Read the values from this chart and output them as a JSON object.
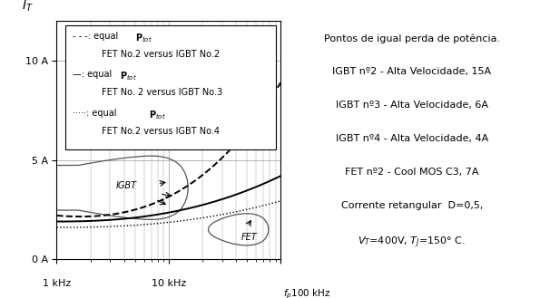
{
  "xmin": 1000,
  "xmax": 100000,
  "ymin": 0,
  "ymax": 12,
  "yticks": [
    0,
    5,
    10
  ],
  "ytick_labels": [
    "0 A",
    "5 A",
    "10 A"
  ],
  "annot_lines": [
    "Pontos de igual perda de potência.",
    "IGBT nº2 - Alta Velocidade, 15A",
    "IGBT nº3 - Alta Velocidade, 6A",
    "IGBT nº4 - Alta Velocidade, 4A",
    "FET nº2 - Cool MOS C3, 7A",
    "Corrente retangular  D=0,5,",
    "$V_T$=400V, $T_J$=150° C."
  ],
  "legend_entries": [
    {
      "style": "dashed",
      "line1": "- - -: equal $\\mathbf{P}_{tot}$",
      "line2": "     FET No.2 versus IGBT No.2"
    },
    {
      "style": "solid",
      "line1": "—: equal $\\mathbf{P}_{tot}$",
      "line2": "     FET No. 2 versus IGBT No.3"
    },
    {
      "style": "dotted",
      "line1": "·····: equal $\\mathbf{P}_{tot}$",
      "line2": "     FET No.2 versus IGBT No.4"
    }
  ],
  "bg_color": "#ffffff",
  "line_color": "#000000",
  "grid_color": "#999999"
}
